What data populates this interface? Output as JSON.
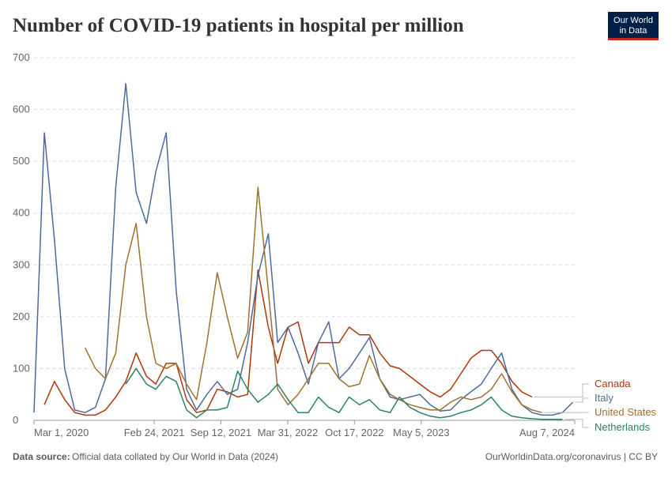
{
  "chart_data": {
    "type": "line",
    "title": "Number of COVID-19 patients in hospital per million",
    "x": [
      "2020-03-01",
      "2020-04-01",
      "2020-05-01",
      "2020-06-01",
      "2020-07-01",
      "2020-08-01",
      "2020-09-01",
      "2020-10-01",
      "2020-11-01",
      "2020-12-01",
      "2021-01-01",
      "2021-02-01",
      "2021-03-01",
      "2021-04-01",
      "2021-05-01",
      "2021-06-01",
      "2021-07-01",
      "2021-08-01",
      "2021-09-01",
      "2021-10-01",
      "2021-11-01",
      "2021-12-01",
      "2022-01-01",
      "2022-02-01",
      "2022-03-01",
      "2022-04-01",
      "2022-05-01",
      "2022-06-01",
      "2022-07-01",
      "2022-08-01",
      "2022-09-01",
      "2022-10-01",
      "2022-11-01",
      "2022-12-01",
      "2023-01-01",
      "2023-02-01",
      "2023-03-01",
      "2023-04-01",
      "2023-05-01",
      "2023-06-01",
      "2023-07-01",
      "2023-08-01",
      "2023-09-01",
      "2023-10-01",
      "2023-11-01",
      "2023-12-01",
      "2024-01-01",
      "2024-02-01",
      "2024-03-01",
      "2024-04-01",
      "2024-05-01",
      "2024-06-01",
      "2024-07-01",
      "2024-08-01"
    ],
    "series": [
      {
        "name": "Canada",
        "color": "#b13507",
        "values": [
          null,
          30,
          75,
          40,
          15,
          10,
          10,
          20,
          45,
          75,
          130,
          85,
          70,
          110,
          110,
          40,
          15,
          20,
          60,
          55,
          45,
          50,
          290,
          180,
          110,
          180,
          190,
          110,
          150,
          150,
          150,
          180,
          165,
          165,
          130,
          105,
          100,
          85,
          70,
          55,
          45,
          60,
          90,
          120,
          135,
          135,
          110,
          75,
          55,
          45,
          null,
          null,
          null,
          null
        ]
      },
      {
        "name": "Italy",
        "color": "#4c6a9c",
        "values": [
          15,
          555,
          350,
          100,
          20,
          15,
          25,
          80,
          450,
          650,
          440,
          380,
          480,
          555,
          250,
          60,
          20,
          50,
          75,
          50,
          60,
          150,
          280,
          360,
          150,
          180,
          130,
          70,
          150,
          190,
          80,
          100,
          130,
          160,
          80,
          45,
          40,
          45,
          50,
          30,
          18,
          20,
          40,
          55,
          70,
          100,
          130,
          60,
          30,
          15,
          10,
          10,
          15,
          35
        ]
      },
      {
        "name": "United States",
        "color": "#a2702f",
        "values": [
          null,
          null,
          null,
          null,
          null,
          140,
          100,
          80,
          130,
          300,
          380,
          200,
          110,
          100,
          110,
          70,
          40,
          150,
          285,
          200,
          120,
          170,
          450,
          250,
          60,
          30,
          50,
          80,
          110,
          110,
          80,
          65,
          70,
          125,
          80,
          50,
          40,
          30,
          25,
          20,
          20,
          35,
          45,
          40,
          45,
          60,
          90,
          55,
          30,
          20,
          15,
          null,
          null,
          null
        ]
      },
      {
        "name": "Netherlands",
        "color": "#2c8465",
        "values": [
          null,
          null,
          null,
          null,
          null,
          null,
          null,
          null,
          null,
          70,
          100,
          70,
          60,
          85,
          75,
          20,
          5,
          20,
          20,
          25,
          95,
          60,
          35,
          50,
          70,
          40,
          15,
          15,
          45,
          25,
          15,
          45,
          30,
          40,
          20,
          15,
          45,
          25,
          15,
          8,
          5,
          8,
          15,
          20,
          30,
          45,
          20,
          8,
          5,
          3,
          2,
          2,
          2,
          null
        ]
      }
    ],
    "xlim": [
      "2020-03-01",
      "2024-08-07"
    ],
    "xticks": [
      {
        "value": "2020-03-01",
        "label": "Mar 1, 2020"
      },
      {
        "value": "2021-02-24",
        "label": "Feb 24, 2021"
      },
      {
        "value": "2021-09-12",
        "label": "Sep 12, 2021"
      },
      {
        "value": "2022-03-31",
        "label": "Mar 31, 2022"
      },
      {
        "value": "2022-10-17",
        "label": "Oct 17, 2022"
      },
      {
        "value": "2023-05-05",
        "label": "May 5, 2023"
      },
      {
        "value": "2024-08-07",
        "label": "Aug 7, 2024"
      }
    ],
    "ylim": [
      0,
      700
    ],
    "yticks": [
      0,
      100,
      200,
      300,
      400,
      500,
      600,
      700
    ],
    "grid": true
  },
  "logo": {
    "line1": "Our World",
    "line2": "in Data"
  },
  "footer": {
    "source_label": "Data source:",
    "source": "Official data collated by Our World in Data (2024)",
    "license": "OurWorldinData.org/coronavirus | CC BY"
  }
}
